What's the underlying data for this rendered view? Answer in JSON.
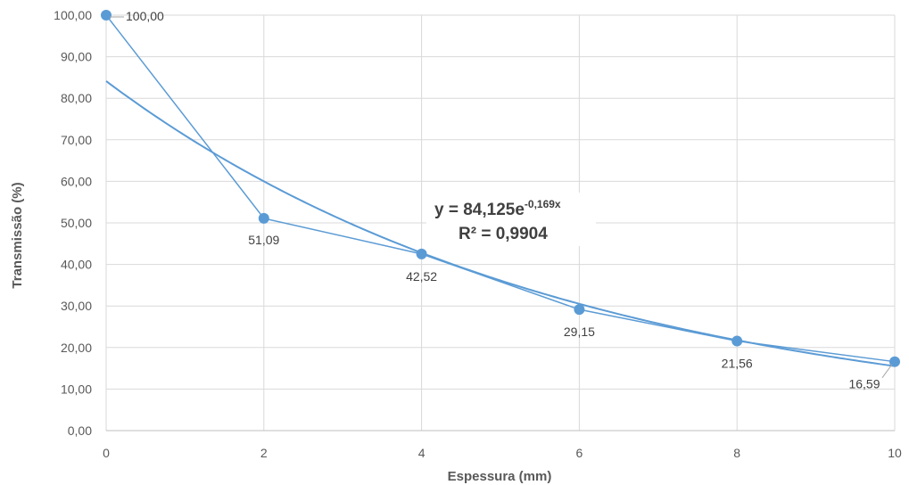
{
  "chart_data": {
    "type": "scatter",
    "title": "",
    "xlabel": "Espessura (mm)",
    "ylabel": "Transmissão (%)",
    "xlim": [
      0,
      10
    ],
    "ylim": [
      0,
      100
    ],
    "x_ticks": [
      0,
      2,
      4,
      6,
      8,
      10
    ],
    "x_tick_labels": [
      "0",
      "2",
      "4",
      "6",
      "8",
      "10"
    ],
    "y_ticks": [
      0,
      10,
      20,
      30,
      40,
      50,
      60,
      70,
      80,
      90,
      100
    ],
    "y_tick_labels": [
      "0,00",
      "10,00",
      "20,00",
      "30,00",
      "40,00",
      "50,00",
      "60,00",
      "70,00",
      "80,00",
      "90,00",
      "100,00"
    ],
    "grid": true,
    "series": [
      {
        "x": [
          0,
          2,
          4,
          6,
          8,
          10
        ],
        "values": [
          100.0,
          51.09,
          42.52,
          29.15,
          21.56,
          16.59
        ],
        "labels": [
          "100,00",
          "51,09",
          "42,52",
          "29,15",
          "21,56",
          "16,59"
        ],
        "color": "#5b9bd5"
      }
    ],
    "trendline": {
      "type": "exponential",
      "a": 84.125,
      "b": -0.169,
      "color": "#5b9bd5",
      "equation_main": "y = 84,125e",
      "equation_exp": "-0,169x",
      "r2_text": "R² = 0,9904"
    }
  }
}
